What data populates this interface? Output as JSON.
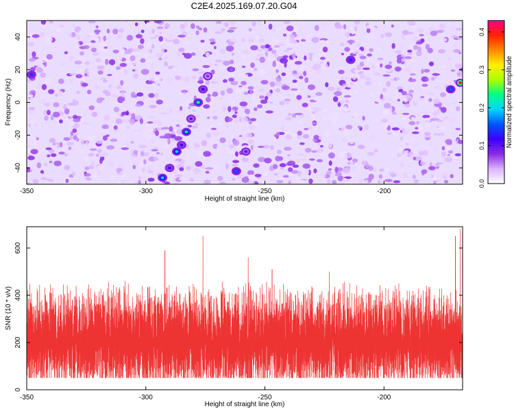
{
  "chart_data": [
    {
      "type": "heatmap",
      "title": "C2E4.2025.169.07.20.G04",
      "xlabel": "Height of straight line (km)",
      "ylabel": "Frequency (Hz)",
      "xlim": [
        -350,
        -167
      ],
      "ylim": [
        -50,
        50
      ],
      "x_ticks": [
        -350,
        -300,
        -250,
        -200
      ],
      "y_ticks": [
        40,
        20,
        0,
        -20,
        -40
      ],
      "colorbar": {
        "label": "Normalized spectral amplitude",
        "range": [
          0,
          0.43
        ],
        "ticks": [
          0.4,
          0.3,
          0.2,
          0.1,
          0
        ],
        "tick_labels": [
          "0.4",
          "0.3",
          "0.2",
          "0.1",
          "0.0"
        ],
        "colormap": [
          "#ffffff",
          "#d9b3ff",
          "#8a2be2",
          "#3a00ff",
          "#0055ff",
          "#00d5ff",
          "#00ff88",
          "#aaff00",
          "#ffee00",
          "#ff8800",
          "#ff2200",
          "#ff0088"
        ]
      },
      "streak": [
        {
          "x": -293,
          "y": -46,
          "z": 0.2
        },
        {
          "x": -290,
          "y": -40,
          "z": 0.12
        },
        {
          "x": -287,
          "y": -30,
          "z": 0.2
        },
        {
          "x": -285,
          "y": -26,
          "z": 0.12
        },
        {
          "x": -283,
          "y": -18,
          "z": 0.22
        },
        {
          "x": -281,
          "y": -10,
          "z": 0.1
        },
        {
          "x": -278,
          "y": 0,
          "z": 0.25
        },
        {
          "x": -276,
          "y": 8,
          "z": 0.12
        },
        {
          "x": -274,
          "y": 16,
          "z": 0.08
        },
        {
          "x": -262,
          "y": -42,
          "z": 0.16
        },
        {
          "x": -258,
          "y": -30,
          "z": 0.1
        },
        {
          "x": -168,
          "y": 12,
          "z": 0.4
        },
        {
          "x": -172,
          "y": 8,
          "z": 0.16
        },
        {
          "x": -214,
          "y": 26,
          "z": 0.14
        },
        {
          "x": -348,
          "y": 17,
          "z": 0.14
        }
      ]
    },
    {
      "type": "line",
      "xlabel": "Height of straight line (km)",
      "ylabel": "SNR (10 * v/v)",
      "xlim": [
        -350,
        -167
      ],
      "ylim": [
        0,
        690
      ],
      "x_ticks": [
        -350,
        -300,
        -250,
        -200
      ],
      "y_ticks": [
        0,
        200,
        400,
        600
      ],
      "line_color": "#ee3333",
      "baseline": 200,
      "band": [
        70,
        400
      ],
      "peaks": [
        {
          "x": -276,
          "y": 650
        },
        {
          "x": -292,
          "y": 590
        },
        {
          "x": -257,
          "y": 560
        },
        {
          "x": -223,
          "y": 500
        },
        {
          "x": -247,
          "y": 510
        },
        {
          "x": -168,
          "y": 680
        },
        {
          "x": -170,
          "y": 650
        }
      ]
    }
  ]
}
